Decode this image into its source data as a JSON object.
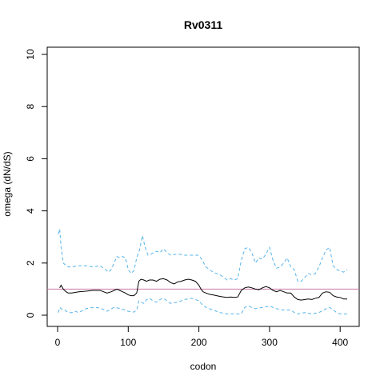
{
  "chart_data": {
    "type": "line",
    "title": "Rv0311",
    "xlabel": "codon",
    "ylabel": "omega (dN/dS)",
    "xlim": [
      0,
      410
    ],
    "ylim": [
      0,
      10
    ],
    "x_ticks": [
      0,
      100,
      200,
      300,
      400
    ],
    "y_ticks": [
      0,
      2,
      4,
      6,
      8,
      10
    ],
    "reference_line": {
      "y": 1,
      "color": "#cc79a7"
    },
    "grid": false,
    "legend": "none",
    "series": [
      {
        "role": "estimate",
        "color": "#000000",
        "style": "solid",
        "x": [
          3,
          5,
          8,
          12,
          15,
          20,
          30,
          40,
          50,
          60,
          70,
          76,
          80,
          84,
          88,
          92,
          96,
          100,
          104,
          108,
          112,
          115,
          118,
          122,
          126,
          130,
          135,
          140,
          145,
          150,
          155,
          160,
          165,
          170,
          175,
          180,
          185,
          190,
          195,
          200,
          203,
          206,
          210,
          215,
          220,
          225,
          230,
          235,
          240,
          245,
          250,
          255,
          260,
          265,
          270,
          275,
          280,
          285,
          290,
          295,
          300,
          305,
          310,
          315,
          320,
          325,
          330,
          335,
          340,
          345,
          350,
          355,
          360,
          365,
          370,
          375,
          380,
          385,
          390,
          395,
          400,
          405,
          410
        ],
        "y": [
          1.05,
          1.15,
          1.0,
          0.9,
          0.85,
          0.85,
          0.9,
          0.92,
          0.95,
          0.95,
          0.85,
          0.9,
          0.95,
          1.0,
          0.95,
          0.9,
          0.85,
          0.78,
          0.75,
          0.75,
          0.85,
          1.3,
          1.38,
          1.35,
          1.3,
          1.35,
          1.35,
          1.3,
          1.38,
          1.4,
          1.35,
          1.25,
          1.2,
          1.28,
          1.3,
          1.35,
          1.38,
          1.35,
          1.3,
          1.15,
          1.0,
          0.9,
          0.85,
          0.8,
          0.78,
          0.75,
          0.72,
          0.7,
          0.68,
          0.7,
          0.68,
          0.7,
          0.95,
          1.05,
          1.08,
          1.05,
          1.0,
          0.98,
          1.05,
          1.1,
          1.05,
          0.95,
          0.9,
          0.95,
          0.9,
          0.85,
          0.85,
          0.7,
          0.6,
          0.58,
          0.6,
          0.62,
          0.6,
          0.65,
          0.68,
          0.85,
          0.9,
          0.88,
          0.75,
          0.7,
          0.68,
          0.62,
          0.62
        ]
      },
      {
        "role": "upper-bound",
        "color": "#56b4e9",
        "style": "dashed",
        "x": [
          1,
          3,
          5,
          8,
          12,
          16,
          20,
          30,
          40,
          50,
          60,
          68,
          72,
          76,
          80,
          84,
          88,
          92,
          96,
          100,
          104,
          108,
          112,
          116,
          120,
          124,
          128,
          132,
          136,
          140,
          145,
          150,
          155,
          160,
          170,
          180,
          190,
          200,
          205,
          210,
          215,
          220,
          225,
          230,
          235,
          240,
          245,
          250,
          255,
          260,
          265,
          270,
          275,
          280,
          285,
          290,
          295,
          300,
          305,
          310,
          315,
          320,
          325,
          330,
          335,
          340,
          345,
          350,
          355,
          360,
          365,
          370,
          375,
          380,
          385,
          390,
          395,
          400,
          405,
          410
        ],
        "y": [
          3.1,
          3.3,
          2.6,
          2.0,
          1.9,
          1.85,
          1.85,
          1.9,
          1.9,
          1.85,
          1.9,
          1.75,
          1.65,
          1.75,
          2.0,
          2.25,
          2.2,
          2.25,
          2.2,
          1.75,
          1.6,
          1.7,
          2.2,
          2.5,
          3.05,
          2.6,
          2.3,
          2.35,
          2.4,
          2.45,
          2.4,
          2.55,
          2.4,
          2.3,
          2.35,
          2.3,
          2.3,
          2.3,
          2.1,
          1.85,
          1.75,
          1.65,
          1.6,
          1.55,
          1.45,
          1.35,
          1.4,
          1.35,
          1.4,
          2.1,
          2.55,
          2.6,
          2.4,
          2.0,
          2.2,
          2.15,
          2.35,
          2.6,
          2.1,
          1.8,
          1.85,
          2.0,
          2.2,
          1.85,
          1.75,
          1.3,
          1.3,
          1.45,
          1.6,
          1.55,
          1.6,
          1.85,
          2.2,
          2.5,
          2.6,
          1.9,
          1.75,
          1.7,
          1.65,
          1.75
        ]
      },
      {
        "role": "lower-bound",
        "color": "#56b4e9",
        "style": "dashed",
        "x": [
          1,
          3,
          5,
          10,
          15,
          20,
          25,
          30,
          40,
          50,
          60,
          70,
          80,
          90,
          100,
          108,
          112,
          115,
          118,
          122,
          126,
          130,
          135,
          140,
          145,
          150,
          155,
          160,
          170,
          180,
          190,
          200,
          205,
          210,
          215,
          220,
          230,
          240,
          250,
          260,
          265,
          270,
          280,
          290,
          300,
          310,
          320,
          330,
          335,
          340,
          350,
          360,
          370,
          380,
          385,
          390,
          395,
          400,
          405,
          410
        ],
        "y": [
          0.1,
          0.3,
          0.25,
          0.2,
          0.1,
          0.1,
          0.15,
          0.1,
          0.25,
          0.3,
          0.28,
          0.15,
          0.3,
          0.25,
          0.15,
          0.12,
          0.2,
          0.55,
          0.5,
          0.45,
          0.6,
          0.65,
          0.55,
          0.5,
          0.6,
          0.65,
          0.55,
          0.45,
          0.5,
          0.6,
          0.65,
          0.55,
          0.4,
          0.3,
          0.25,
          0.2,
          0.1,
          0.05,
          0.05,
          0.05,
          0.3,
          0.35,
          0.25,
          0.3,
          0.35,
          0.25,
          0.2,
          0.2,
          0.1,
          0.05,
          0.1,
          0.05,
          0.1,
          0.25,
          0.3,
          0.2,
          0.1,
          0.05,
          0.05,
          0.05
        ]
      }
    ]
  }
}
